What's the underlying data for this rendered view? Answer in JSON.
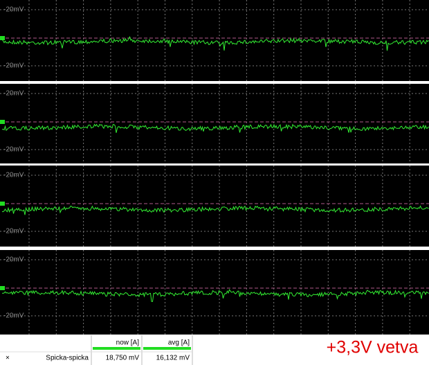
{
  "panels": [
    {
      "top_label": "-20mV",
      "bottom_label": "-20mV"
    },
    {
      "top_label": "-20mV",
      "bottom_label": "-20mV"
    },
    {
      "top_label": "-20mV",
      "bottom_label": "-20mV"
    },
    {
      "top_label": "-20mV",
      "bottom_label": "-20mV"
    }
  ],
  "measurements": {
    "close": "×",
    "name": "Spicka-spicka",
    "columns": [
      "now [A]",
      "avg [A]"
    ],
    "values": [
      "18,750 mV",
      "16,132 mV"
    ]
  },
  "caption": "+3,3V vetva"
}
